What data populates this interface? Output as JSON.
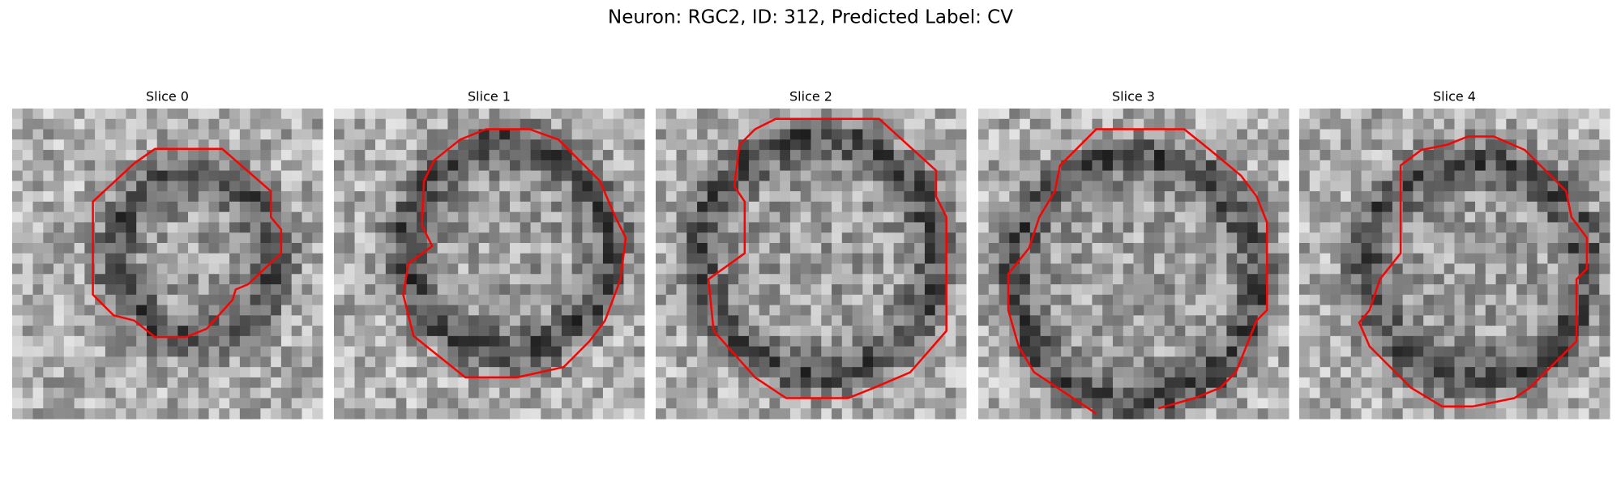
{
  "title": "Neuron: RGC2, ID: 312, Predicted Label: CV",
  "panels": [
    {
      "title": "Slice 0"
    },
    {
      "title": "Slice 1"
    },
    {
      "title": "Slice 2"
    },
    {
      "title": "Slice 3"
    },
    {
      "title": "Slice 4"
    }
  ]
}
